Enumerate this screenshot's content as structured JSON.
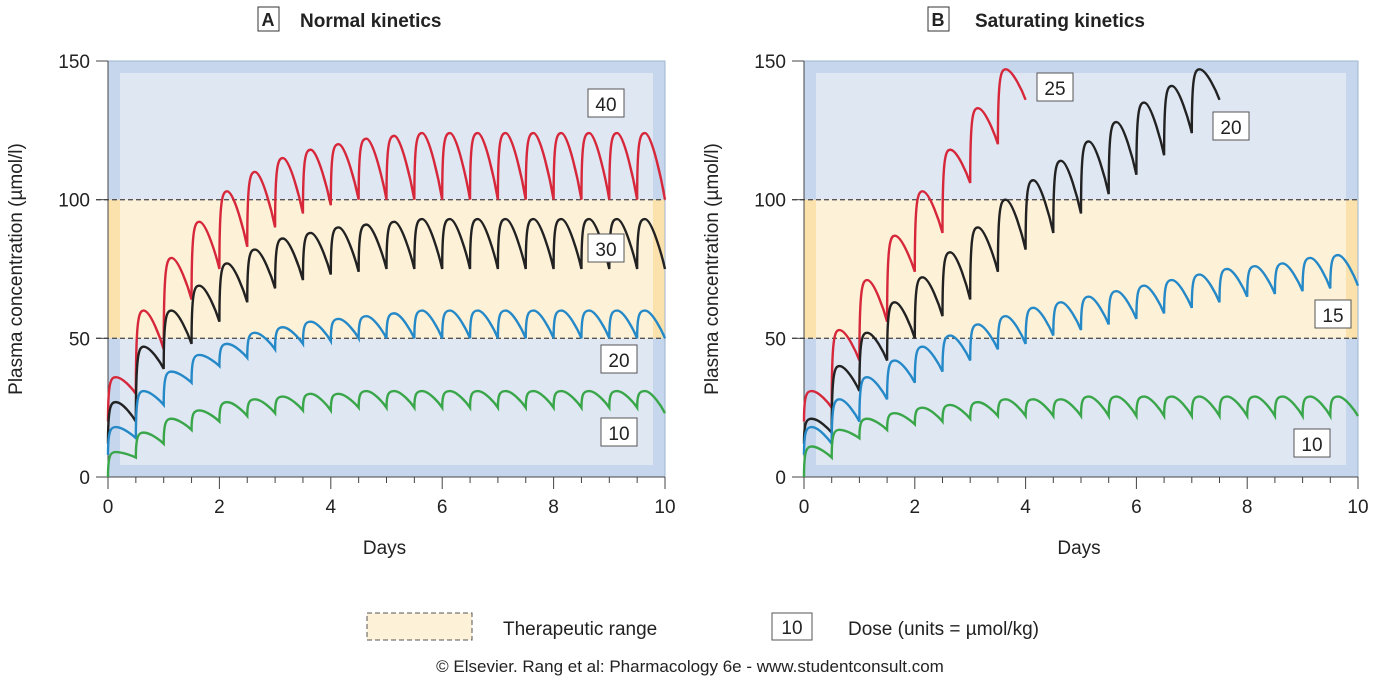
{
  "chart_data": [
    {
      "type": "line",
      "panel": "A",
      "title": "Normal kinetics",
      "xlabel": "Days",
      "ylabel": "Plasma concentration (µmol/l)",
      "xlim": [
        0,
        10
      ],
      "ylim": [
        0,
        150
      ],
      "xticks": [
        "0",
        "2",
        "4",
        "6",
        "8",
        "10"
      ],
      "yticks": [
        "0",
        "50",
        "100",
        "150"
      ],
      "therapeutic_range": [
        50,
        100
      ],
      "dose_interval_days": 0.5,
      "series": [
        {
          "dose": "40",
          "color": "#d6283a",
          "start": 20,
          "peaks": [
            36,
            60,
            79,
            92,
            103,
            110,
            115,
            118,
            120,
            122,
            123,
            124,
            124,
            124,
            124,
            124,
            124,
            124,
            124,
            124
          ],
          "troughs": [
            30,
            46,
            64,
            75,
            83,
            90,
            95,
            98,
            100,
            100,
            100,
            100,
            100,
            100,
            100,
            100,
            100,
            100,
            100,
            100
          ]
        },
        {
          "dose": "30",
          "color": "#222222",
          "start": 12,
          "peaks": [
            27,
            47,
            60,
            69,
            77,
            82,
            86,
            88,
            90,
            91,
            92,
            93,
            93,
            93,
            93,
            93,
            93,
            93,
            93,
            93
          ],
          "troughs": [
            20,
            39,
            48,
            56,
            63,
            68,
            71,
            73,
            74,
            75,
            75,
            75,
            75,
            75,
            75,
            75,
            75,
            75,
            75,
            75
          ]
        },
        {
          "dose": "20",
          "color": "#2589c8",
          "start": 8,
          "peaks": [
            18,
            31,
            38,
            44,
            48,
            52,
            54,
            56,
            57,
            58,
            59,
            60,
            60,
            60,
            60,
            60,
            60,
            60,
            60,
            60
          ],
          "troughs": [
            14,
            26,
            34,
            40,
            43,
            46,
            48,
            49,
            50,
            50,
            50,
            50,
            50,
            50,
            50,
            50,
            50,
            50,
            50,
            50
          ]
        },
        {
          "dose": "10",
          "color": "#3aa64a",
          "start": 0,
          "peaks": [
            9,
            16,
            21,
            24,
            27,
            28,
            29,
            30,
            30,
            31,
            31,
            31,
            31,
            31,
            31,
            31,
            31,
            31,
            31,
            31
          ],
          "troughs": [
            7,
            12,
            17,
            20,
            22,
            23,
            24,
            24,
            25,
            25,
            25,
            25,
            25,
            25,
            25,
            25,
            25,
            25,
            25,
            23
          ]
        }
      ]
    },
    {
      "type": "line",
      "panel": "B",
      "title": "Saturating kinetics",
      "xlabel": "Days",
      "ylabel": "Plasma concentration (µmol/l)",
      "xlim": [
        0,
        10
      ],
      "ylim": [
        0,
        150
      ],
      "xticks": [
        "0",
        "2",
        "4",
        "6",
        "8",
        "10"
      ],
      "yticks": [
        "0",
        "50",
        "100",
        "150"
      ],
      "therapeutic_range": [
        50,
        100
      ],
      "dose_interval_days": 0.5,
      "series": [
        {
          "dose": "25",
          "color": "#d6283a",
          "start": 20,
          "peaks": [
            31,
            53,
            71,
            87,
            103,
            118,
            133,
            147
          ],
          "troughs": [
            25,
            42,
            56,
            74,
            88,
            106,
            120,
            136
          ]
        },
        {
          "dose": "20",
          "color": "#222222",
          "start": 12,
          "peaks": [
            21,
            40,
            52,
            63,
            72,
            81,
            90,
            100,
            107,
            114,
            121,
            128,
            135,
            141,
            147
          ],
          "troughs": [
            16,
            31,
            42,
            50,
            58,
            64,
            74,
            82,
            88,
            95,
            102,
            109,
            116,
            124,
            136
          ]
        },
        {
          "dose": "15",
          "color": "#2589c8",
          "start": 8,
          "peaks": [
            18,
            28,
            36,
            42,
            47,
            51,
            55,
            58,
            61,
            63,
            65,
            67,
            69,
            71,
            73,
            75,
            76,
            77,
            79,
            80
          ],
          "troughs": [
            12,
            20,
            28,
            34,
            38,
            42,
            46,
            48,
            51,
            53,
            55,
            57,
            59,
            61,
            63,
            65,
            66,
            67,
            68,
            69
          ]
        },
        {
          "dose": "10",
          "color": "#3aa64a",
          "start": 0,
          "peaks": [
            11,
            17,
            21,
            23,
            25,
            26,
            27,
            28,
            28,
            28,
            29,
            29,
            29,
            29,
            29,
            29,
            29,
            29,
            29,
            29
          ],
          "troughs": [
            7,
            14,
            17,
            19,
            20,
            21,
            22,
            22,
            22,
            22,
            22,
            22,
            22,
            22,
            22,
            22,
            22,
            22,
            22,
            22
          ]
        }
      ]
    }
  ],
  "legend": {
    "therapeutic_label": "Therapeutic range",
    "dose_box": "10",
    "dose_label": "Dose (units = µmol/kg)"
  },
  "credit": "© Elsevier. Rang et al: Pharmacology 6e - www.studentconsult.com",
  "colors": {
    "outer": "#c6d7ed",
    "inner": "#dfe7f3",
    "band": "#fdf1d8",
    "band_edge": "#fbe2ad"
  }
}
